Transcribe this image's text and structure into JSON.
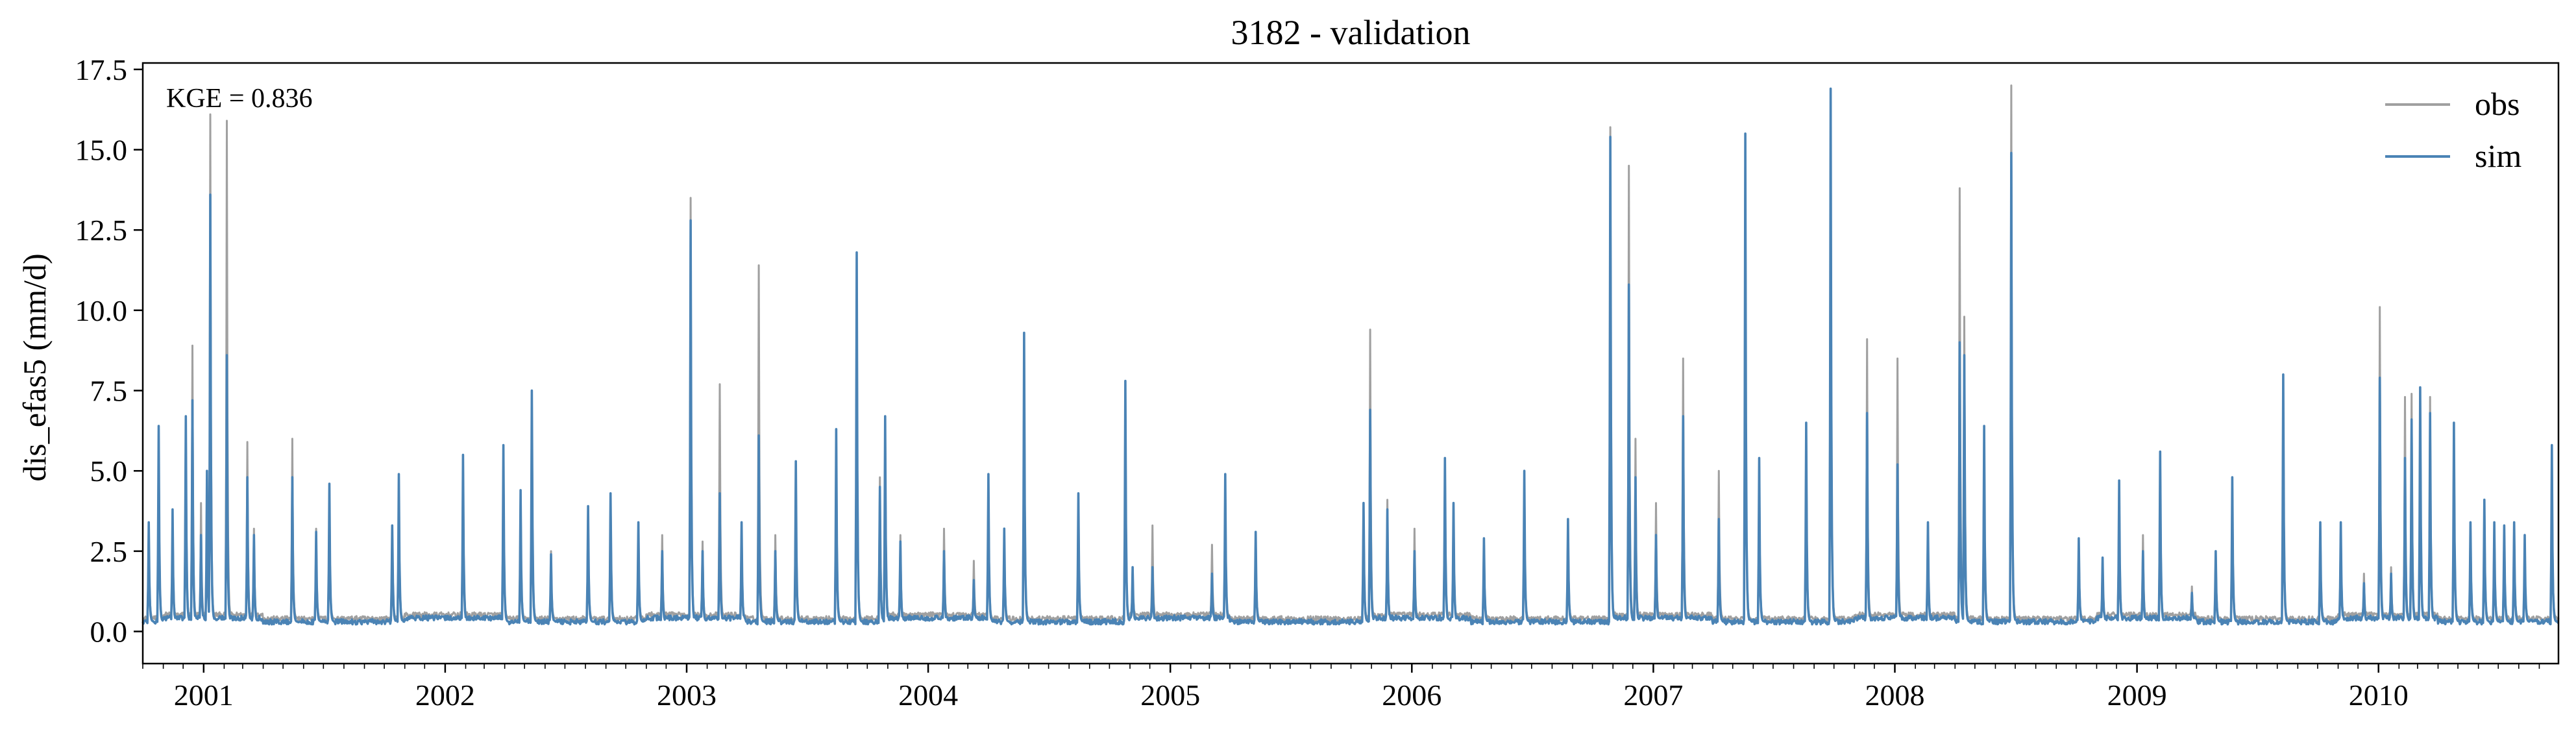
{
  "chart_data": {
    "type": "line",
    "title": "3182 - validation",
    "ylabel": "dis_efas5 (mm/d)",
    "xlabel": "",
    "annotation": "KGE = 0.836",
    "xlim": [
      "2000-10-01",
      "2010-09-30"
    ],
    "ylim": [
      -1.0,
      17.7
    ],
    "grid": false,
    "legend_position": "top-right",
    "x_ticks": [
      "2001-01-01",
      "2002-01-01",
      "2003-01-01",
      "2004-01-01",
      "2005-01-01",
      "2006-01-01",
      "2007-01-01",
      "2008-01-01",
      "2009-01-01",
      "2010-01-01"
    ],
    "x_tick_labels": [
      "2001",
      "2002",
      "2003",
      "2004",
      "2005",
      "2006",
      "2007",
      "2008",
      "2009",
      "2010"
    ],
    "y_ticks": [
      0.0,
      2.5,
      5.0,
      7.5,
      10.0,
      12.5,
      15.0,
      17.5
    ],
    "y_tick_labels": [
      "0.0",
      "2.5",
      "5.0",
      "7.5",
      "10.0",
      "12.5",
      "15.0",
      "17.5"
    ],
    "baseline": {
      "obs": 0.4,
      "sim": 0.3
    },
    "series": [
      {
        "name": "obs",
        "color": "#a0a0a0",
        "peaks": [
          [
            "2000-10-10",
            3.4
          ],
          [
            "2000-10-25",
            6.4
          ],
          [
            "2000-11-15",
            3.8
          ],
          [
            "2000-12-05",
            6.7
          ],
          [
            "2000-12-15",
            8.9
          ],
          [
            "2000-12-28",
            4.0
          ],
          [
            "2001-01-06",
            5.0
          ],
          [
            "2001-01-11",
            16.1
          ],
          [
            "2001-02-05",
            15.9
          ],
          [
            "2001-03-08",
            5.9
          ],
          [
            "2001-03-18",
            3.2
          ],
          [
            "2001-05-15",
            6.0
          ],
          [
            "2001-06-20",
            3.2
          ],
          [
            "2001-07-10",
            4.6
          ],
          [
            "2001-10-13",
            3.3
          ],
          [
            "2001-10-23",
            4.9
          ],
          [
            "2002-01-28",
            5.5
          ],
          [
            "2002-03-30",
            5.8
          ],
          [
            "2002-04-25",
            4.4
          ],
          [
            "2002-05-12",
            7.5
          ],
          [
            "2002-06-10",
            2.5
          ],
          [
            "2002-08-05",
            3.9
          ],
          [
            "2002-09-08",
            4.3
          ],
          [
            "2002-10-20",
            3.4
          ],
          [
            "2002-11-25",
            3.0
          ],
          [
            "2003-01-07",
            13.5
          ],
          [
            "2003-01-25",
            2.8
          ],
          [
            "2003-02-20",
            7.7
          ],
          [
            "2003-03-25",
            3.4
          ],
          [
            "2003-04-20",
            11.4
          ],
          [
            "2003-05-15",
            3.0
          ],
          [
            "2003-06-15",
            5.3
          ],
          [
            "2003-08-15",
            6.3
          ],
          [
            "2003-09-15",
            11.8
          ],
          [
            "2003-10-20",
            4.8
          ],
          [
            "2003-10-28",
            6.7
          ],
          [
            "2003-11-20",
            3.0
          ],
          [
            "2004-01-25",
            3.2
          ],
          [
            "2004-03-10",
            2.2
          ],
          [
            "2004-04-01",
            4.9
          ],
          [
            "2004-04-25",
            3.2
          ],
          [
            "2004-05-25",
            9.3
          ],
          [
            "2004-08-15",
            4.3
          ],
          [
            "2004-10-25",
            7.8
          ],
          [
            "2004-11-05",
            2.0
          ],
          [
            "2004-12-05",
            3.3
          ],
          [
            "2005-03-05",
            2.7
          ],
          [
            "2005-03-25",
            4.9
          ],
          [
            "2005-05-10",
            3.1
          ],
          [
            "2005-10-20",
            4.0
          ],
          [
            "2005-10-30",
            9.4
          ],
          [
            "2005-11-25",
            4.1
          ],
          [
            "2006-01-05",
            3.2
          ],
          [
            "2006-02-20",
            5.4
          ],
          [
            "2006-03-05",
            4.0
          ],
          [
            "2006-04-20",
            2.9
          ],
          [
            "2006-06-20",
            5.0
          ],
          [
            "2006-08-25",
            3.5
          ],
          [
            "2006-10-28",
            15.7
          ],
          [
            "2006-11-25",
            14.5
          ],
          [
            "2006-12-05",
            6.0
          ],
          [
            "2007-01-05",
            4.0
          ],
          [
            "2007-02-15",
            8.5
          ],
          [
            "2007-04-10",
            5.0
          ],
          [
            "2007-05-20",
            15.5
          ],
          [
            "2007-06-10",
            5.4
          ],
          [
            "2007-08-20",
            6.5
          ],
          [
            "2007-09-26",
            16.9
          ],
          [
            "2007-11-20",
            9.1
          ],
          [
            "2008-01-05",
            8.5
          ],
          [
            "2008-02-20",
            3.4
          ],
          [
            "2008-04-08",
            13.8
          ],
          [
            "2008-04-15",
            9.8
          ],
          [
            "2008-05-15",
            6.4
          ],
          [
            "2008-06-25",
            17.0
          ],
          [
            "2008-10-05",
            2.9
          ],
          [
            "2008-11-10",
            2.3
          ],
          [
            "2008-12-05",
            4.7
          ],
          [
            "2009-01-10",
            3.0
          ],
          [
            "2009-02-05",
            5.6
          ],
          [
            "2009-03-25",
            1.4
          ],
          [
            "2009-04-30",
            2.5
          ],
          [
            "2009-05-25",
            4.8
          ],
          [
            "2009-08-10",
            8.0
          ],
          [
            "2009-10-05",
            3.4
          ],
          [
            "2009-11-05",
            3.4
          ],
          [
            "2009-12-10",
            1.8
          ],
          [
            "2010-01-03",
            10.1
          ],
          [
            "2010-01-20",
            2.0
          ],
          [
            "2010-02-10",
            7.3
          ],
          [
            "2010-02-20",
            7.4
          ],
          [
            "2010-03-05",
            7.6
          ],
          [
            "2010-03-20",
            7.3
          ],
          [
            "2010-04-25",
            6.5
          ],
          [
            "2010-05-20",
            3.4
          ],
          [
            "2010-06-10",
            4.1
          ],
          [
            "2010-06-25",
            3.4
          ],
          [
            "2010-07-10",
            3.3
          ],
          [
            "2010-07-25",
            3.4
          ],
          [
            "2010-08-10",
            3.0
          ],
          [
            "2010-09-20",
            5.8
          ]
        ]
      },
      {
        "name": "sim",
        "color": "#4a83b5",
        "peaks": [
          [
            "2000-10-10",
            3.4
          ],
          [
            "2000-10-25",
            6.4
          ],
          [
            "2000-11-15",
            3.8
          ],
          [
            "2000-12-05",
            6.7
          ],
          [
            "2000-12-15",
            7.2
          ],
          [
            "2000-12-28",
            3.0
          ],
          [
            "2001-01-06",
            5.0
          ],
          [
            "2001-01-11",
            13.6
          ],
          [
            "2001-02-05",
            8.6
          ],
          [
            "2001-03-08",
            4.8
          ],
          [
            "2001-03-18",
            3.0
          ],
          [
            "2001-05-15",
            4.8
          ],
          [
            "2001-06-20",
            3.1
          ],
          [
            "2001-07-10",
            4.6
          ],
          [
            "2001-10-13",
            3.3
          ],
          [
            "2001-10-23",
            4.9
          ],
          [
            "2002-01-28",
            5.5
          ],
          [
            "2002-03-30",
            5.8
          ],
          [
            "2002-04-25",
            4.4
          ],
          [
            "2002-05-12",
            7.5
          ],
          [
            "2002-06-10",
            2.4
          ],
          [
            "2002-08-05",
            3.9
          ],
          [
            "2002-09-08",
            4.3
          ],
          [
            "2002-10-20",
            3.4
          ],
          [
            "2002-11-25",
            2.5
          ],
          [
            "2003-01-07",
            12.8
          ],
          [
            "2003-01-25",
            2.5
          ],
          [
            "2003-02-20",
            4.3
          ],
          [
            "2003-03-25",
            3.4
          ],
          [
            "2003-04-20",
            6.1
          ],
          [
            "2003-05-15",
            2.5
          ],
          [
            "2003-06-15",
            5.3
          ],
          [
            "2003-08-15",
            6.3
          ],
          [
            "2003-09-15",
            11.8
          ],
          [
            "2003-10-20",
            4.5
          ],
          [
            "2003-10-28",
            6.7
          ],
          [
            "2003-11-20",
            2.8
          ],
          [
            "2004-01-25",
            2.5
          ],
          [
            "2004-03-10",
            1.6
          ],
          [
            "2004-04-01",
            4.9
          ],
          [
            "2004-04-25",
            3.2
          ],
          [
            "2004-05-25",
            9.3
          ],
          [
            "2004-08-15",
            4.3
          ],
          [
            "2004-10-25",
            7.8
          ],
          [
            "2004-11-05",
            2.0
          ],
          [
            "2004-12-05",
            2.0
          ],
          [
            "2005-03-05",
            1.8
          ],
          [
            "2005-03-25",
            4.9
          ],
          [
            "2005-05-10",
            3.1
          ],
          [
            "2005-10-20",
            4.0
          ],
          [
            "2005-10-30",
            6.9
          ],
          [
            "2005-11-25",
            3.8
          ],
          [
            "2006-01-05",
            2.5
          ],
          [
            "2006-02-20",
            5.4
          ],
          [
            "2006-03-05",
            4.0
          ],
          [
            "2006-04-20",
            2.9
          ],
          [
            "2006-06-20",
            5.0
          ],
          [
            "2006-08-25",
            3.5
          ],
          [
            "2006-10-28",
            15.4
          ],
          [
            "2006-11-25",
            10.8
          ],
          [
            "2006-12-05",
            4.8
          ],
          [
            "2007-01-05",
            3.0
          ],
          [
            "2007-02-15",
            6.7
          ],
          [
            "2007-04-10",
            3.5
          ],
          [
            "2007-05-20",
            15.5
          ],
          [
            "2007-06-10",
            5.4
          ],
          [
            "2007-08-20",
            6.5
          ],
          [
            "2007-09-26",
            16.9
          ],
          [
            "2007-11-20",
            6.8
          ],
          [
            "2008-01-05",
            5.2
          ],
          [
            "2008-02-20",
            3.4
          ],
          [
            "2008-04-08",
            9.0
          ],
          [
            "2008-04-15",
            8.6
          ],
          [
            "2008-05-15",
            6.4
          ],
          [
            "2008-06-25",
            14.9
          ],
          [
            "2008-10-05",
            2.9
          ],
          [
            "2008-11-10",
            2.3
          ],
          [
            "2008-12-05",
            4.7
          ],
          [
            "2009-01-10",
            2.5
          ],
          [
            "2009-02-05",
            5.6
          ],
          [
            "2009-03-25",
            1.2
          ],
          [
            "2009-04-30",
            2.5
          ],
          [
            "2009-05-25",
            4.8
          ],
          [
            "2009-08-10",
            8.0
          ],
          [
            "2009-10-05",
            3.4
          ],
          [
            "2009-11-05",
            3.4
          ],
          [
            "2009-12-10",
            1.5
          ],
          [
            "2010-01-03",
            7.9
          ],
          [
            "2010-01-20",
            1.8
          ],
          [
            "2010-02-10",
            5.4
          ],
          [
            "2010-02-20",
            6.6
          ],
          [
            "2010-03-05",
            7.6
          ],
          [
            "2010-03-20",
            6.8
          ],
          [
            "2010-04-25",
            6.5
          ],
          [
            "2010-05-20",
            3.4
          ],
          [
            "2010-06-10",
            4.1
          ],
          [
            "2010-06-25",
            3.4
          ],
          [
            "2010-07-10",
            3.3
          ],
          [
            "2010-07-25",
            3.4
          ],
          [
            "2010-08-10",
            3.0
          ],
          [
            "2010-09-20",
            5.8
          ]
        ]
      }
    ]
  }
}
